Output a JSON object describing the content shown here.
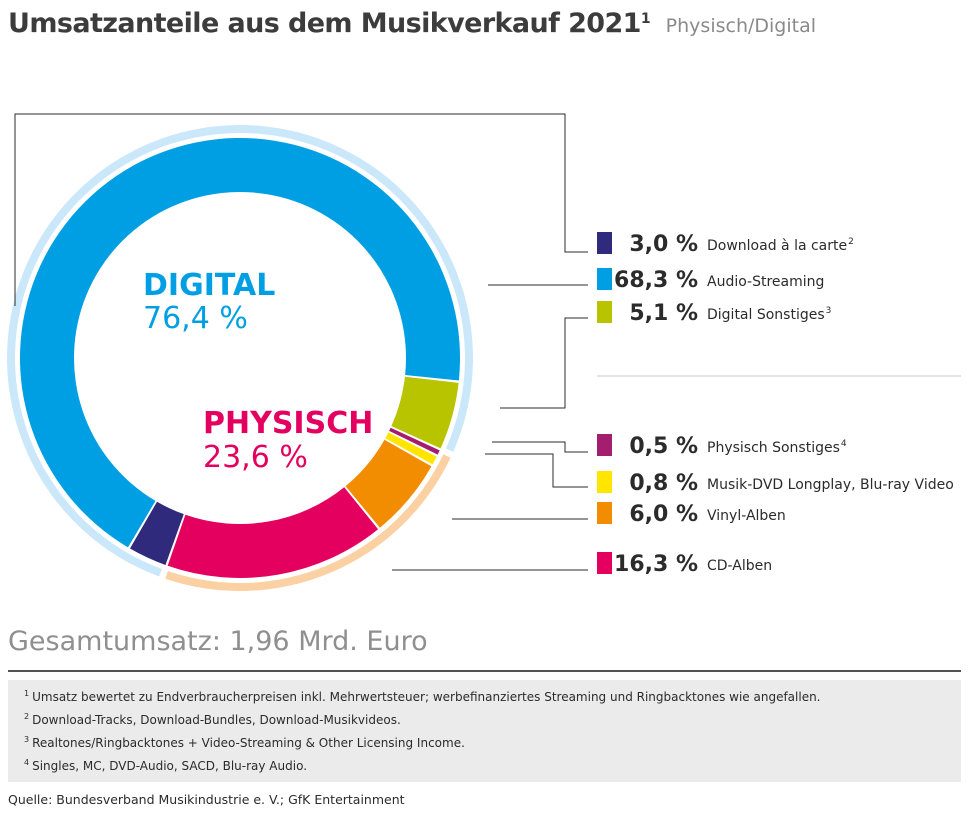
{
  "header": {
    "title": "Umsatzanteile aus dem Musikverkauf 2021",
    "title_note": "1",
    "subtitle": "Physisch/Digital"
  },
  "chart_data": {
    "type": "pie",
    "variant": "donut",
    "groups": [
      {
        "label": "DIGITAL",
        "value_text": "76,4 %",
        "value": 76.4,
        "color": "#009fe3",
        "ring_color": "#cbe8fa"
      },
      {
        "label": "PHYSISCH",
        "value_text": "23,6 %",
        "value": 23.6,
        "color": "#e4005e",
        "ring_color": "#fbd1a4"
      }
    ],
    "slices": [
      {
        "name": "Download à la carte",
        "note": "2",
        "value": 3.0,
        "value_text": "3,0 %",
        "color": "#2f2a7b",
        "group": "digital"
      },
      {
        "name": "Audio-Streaming",
        "note": "",
        "value": 68.3,
        "value_text": "68,3 %",
        "color": "#009fe3",
        "group": "digital"
      },
      {
        "name": "Digital Sonstiges",
        "note": "3",
        "value": 5.1,
        "value_text": "5,1 %",
        "color": "#b9c400",
        "group": "digital"
      },
      {
        "name": "Physisch Sonstiges",
        "note": "4",
        "value": 0.5,
        "value_text": "0,5 %",
        "color": "#a31e6e",
        "group": "physisch"
      },
      {
        "name": "Musik-DVD Longplay, Blu-ray Video",
        "note": "",
        "value": 0.8,
        "value_text": "0,8 %",
        "color": "#ffe500",
        "group": "physisch"
      },
      {
        "name": "Vinyl-Alben",
        "note": "",
        "value": 6.0,
        "value_text": "6,0 %",
        "color": "#f28c00",
        "group": "physisch"
      },
      {
        "name": "CD-Alben",
        "note": "",
        "value": 16.3,
        "value_text": "16,3 %",
        "color": "#e4005e",
        "group": "physisch"
      }
    ]
  },
  "total": "Gesamtumsatz: 1,96 Mrd. Euro",
  "footnotes": [
    {
      "mark": "1",
      "text": "Umsatz bewertet zu Endverbraucherpreisen inkl. Mehrwertsteuer; werbefinanziertes Streaming und Ringbacktones wie angefallen."
    },
    {
      "mark": "2",
      "text": "Download-Tracks, Download-Bundles, Download-Musikvideos."
    },
    {
      "mark": "3",
      "text": "Realtones/Ringbacktones + Video-Streaming & Other Licensing Income."
    },
    {
      "mark": "4",
      "text": "Singles, MC, DVD-Audio, SACD, Blu-ray Audio."
    }
  ],
  "source": "Quelle: Bundesverband Musikindustrie e. V.; GfK Entertainment"
}
